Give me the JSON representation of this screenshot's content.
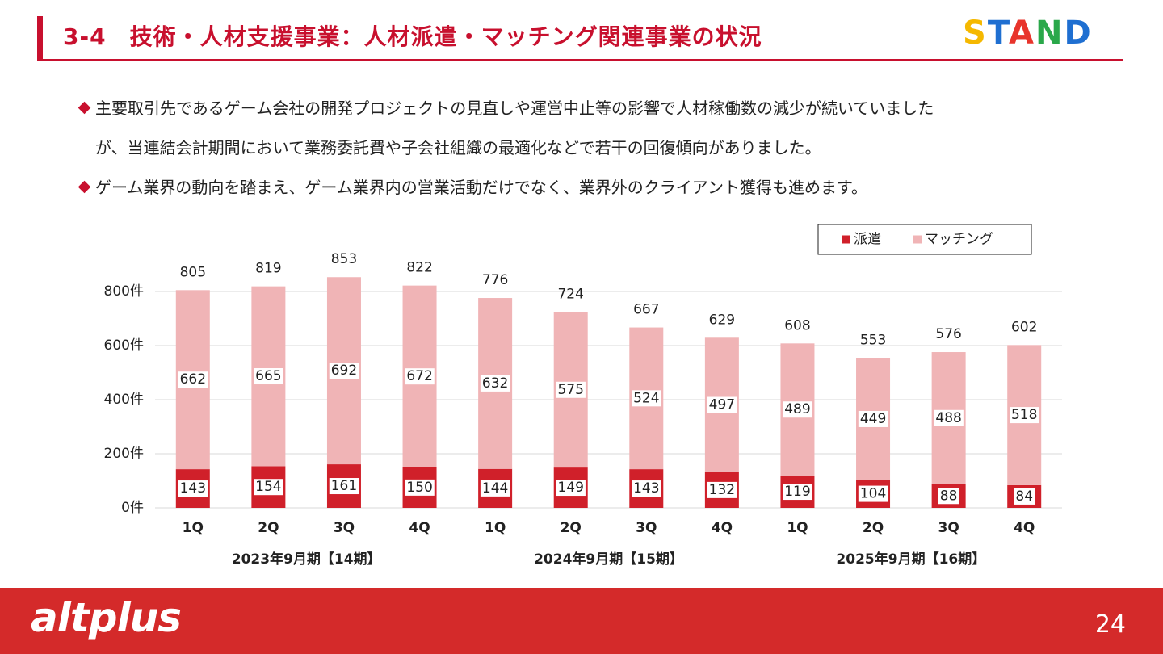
{
  "header": {
    "title": "3-4　技術・人材支援事業：人材派遣・マッチング関連事業の状況",
    "logo": "STAND"
  },
  "bullets": [
    {
      "lines": [
        "主要取引先であるゲーム会社の開発プロジェクトの見直しや運営中止等の影響で人材稼働数の減少が続いていました",
        "が、当連結会計期間において業務委託費や子会社組織の最適化などで若干の回復傾向がありました。"
      ]
    },
    {
      "lines": [
        "ゲーム業界の動向を踏まえ、ゲーム業界内の営業活動だけでなく、業界外のクライアント獲得も進めます。"
      ]
    }
  ],
  "chart_data": {
    "type": "stacked_bar",
    "categories": [
      "1Q",
      "2Q",
      "3Q",
      "4Q",
      "1Q",
      "2Q",
      "3Q",
      "4Q",
      "1Q",
      "2Q",
      "3Q",
      "4Q"
    ],
    "groups": [
      "2023年9月期【14期】",
      "2024年9月期【15期】",
      "2025年9月期【16期】"
    ],
    "series": [
      {
        "name": "派遣",
        "color": "#d0202a",
        "values": [
          143,
          154,
          161,
          150,
          144,
          149,
          143,
          132,
          119,
          104,
          88,
          84
        ]
      },
      {
        "name": "マッチング",
        "color": "#f0b4b6",
        "values": [
          662,
          665,
          692,
          672,
          632,
          575,
          524,
          497,
          489,
          449,
          488,
          518
        ]
      }
    ],
    "totals": [
      805,
      819,
      853,
      822,
      776,
      724,
      667,
      629,
      608,
      553,
      576,
      602
    ],
    "ylim": [
      0,
      860
    ],
    "yticks": [
      {
        "value": 0,
        "label": "0件"
      },
      {
        "value": 200,
        "label": "200件"
      },
      {
        "value": 400,
        "label": "400件"
      },
      {
        "value": 600,
        "label": "600件"
      },
      {
        "value": 800,
        "label": "800件"
      }
    ],
    "grid": true,
    "legend": "top-right"
  },
  "footer": {
    "brand": "altplus",
    "page": "24"
  }
}
